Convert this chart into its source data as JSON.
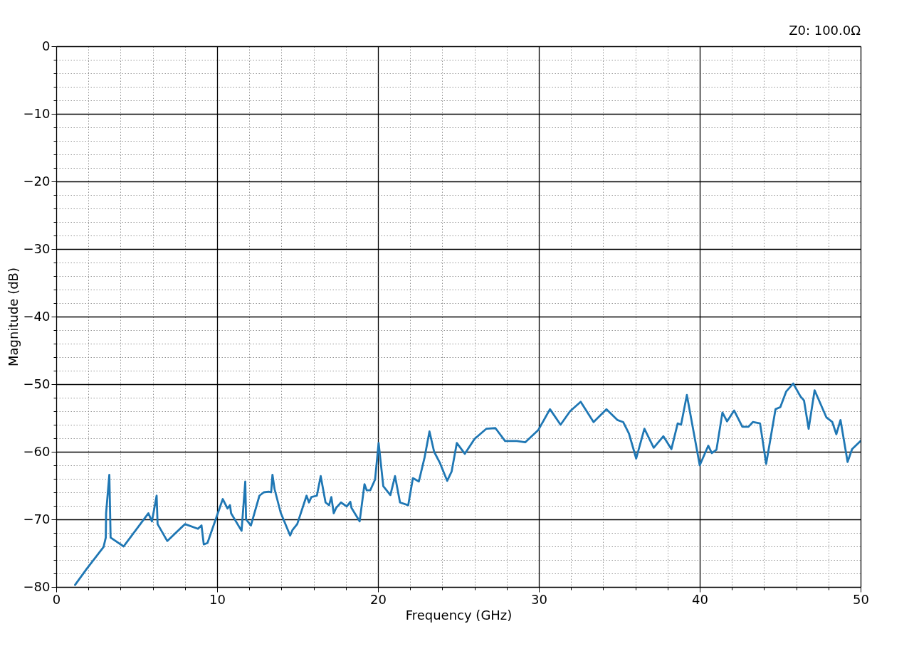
{
  "chart_data": {
    "type": "line",
    "xlabel": "Frequency (GHz)",
    "ylabel": "Magnitude (dB)",
    "annotations": [
      "Z0: 100.0Ω"
    ],
    "xlim": [
      0,
      50
    ],
    "ylim": [
      -80,
      0
    ],
    "xticks": [
      0,
      {
        "value": 2,
        "label": null
      },
      {
        "value": 4,
        "label": null
      },
      {
        "value": 6,
        "label": null
      },
      {
        "value": 8,
        "label": null
      },
      10,
      {
        "value": 12,
        "label": null
      },
      {
        "value": 14,
        "label": null
      },
      {
        "value": 16,
        "label": null
      },
      {
        "value": 18,
        "label": null
      },
      20,
      {
        "value": 22,
        "label": null
      },
      {
        "value": 24,
        "label": null
      },
      {
        "value": 26,
        "label": null
      },
      {
        "value": 28,
        "label": null
      },
      30,
      {
        "value": 32,
        "label": null
      },
      {
        "value": 34,
        "label": null
      },
      {
        "value": 36,
        "label": null
      },
      {
        "value": 38,
        "label": null
      },
      40,
      {
        "value": 42,
        "label": null
      },
      {
        "value": 44,
        "label": null
      },
      {
        "value": 46,
        "label": null
      },
      {
        "value": 48,
        "label": null
      },
      50
    ],
    "yticks": [
      {
        "value": -80,
        "label": "−80"
      },
      {
        "value": -78,
        "label": null
      },
      {
        "value": -76,
        "label": null
      },
      {
        "value": -74,
        "label": null
      },
      {
        "value": -72,
        "label": null
      },
      {
        "value": -70,
        "label": "−70"
      },
      {
        "value": -68,
        "label": null
      },
      {
        "value": -66,
        "label": null
      },
      {
        "value": -64,
        "label": null
      },
      {
        "value": -62,
        "label": null
      },
      {
        "value": -60,
        "label": "−60"
      },
      {
        "value": -58,
        "label": null
      },
      {
        "value": -56,
        "label": null
      },
      {
        "value": -54,
        "label": null
      },
      {
        "value": -52,
        "label": null
      },
      {
        "value": -50,
        "label": "−50"
      },
      {
        "value": -48,
        "label": null
      },
      {
        "value": -46,
        "label": null
      },
      {
        "value": -44,
        "label": null
      },
      {
        "value": -42,
        "label": null
      },
      {
        "value": -40,
        "label": "−40"
      },
      {
        "value": -38,
        "label": null
      },
      {
        "value": -36,
        "label": null
      },
      {
        "value": -34,
        "label": null
      },
      {
        "value": -32,
        "label": null
      },
      {
        "value": -30,
        "label": "−30"
      },
      {
        "value": -28,
        "label": null
      },
      {
        "value": -26,
        "label": null
      },
      {
        "value": -24,
        "label": null
      },
      {
        "value": -22,
        "label": null
      },
      {
        "value": -20,
        "label": "−20"
      },
      {
        "value": -18,
        "label": null
      },
      {
        "value": -16,
        "label": null
      },
      {
        "value": -14,
        "label": null
      },
      {
        "value": -12,
        "label": null
      },
      {
        "value": -10,
        "label": "−10"
      },
      {
        "value": -8,
        "label": null
      },
      {
        "value": -6,
        "label": null
      },
      {
        "value": -4,
        "label": null
      },
      {
        "value": -2,
        "label": null
      },
      0
    ],
    "grid": true,
    "marker": "none",
    "line_style": "solid",
    "series": [
      {
        "color": "#1f77b4",
        "x": [
          1.17,
          1.9,
          2.94,
          3.08,
          3.1,
          3.3,
          3.38,
          4.19,
          5.73,
          5.95,
          6.24,
          6.3,
          6.9,
          8.0,
          8.81,
          9.03,
          9.17,
          9.4,
          10.35,
          10.65,
          10.8,
          10.87,
          11.52,
          11.75,
          11.8,
          12.1,
          12.63,
          12.9,
          13.2,
          13.36,
          13.44,
          13.57,
          13.95,
          14.54,
          14.68,
          14.98,
          15.56,
          15.71,
          15.86,
          16.2,
          16.44,
          16.74,
          16.96,
          17.1,
          17.25,
          17.4,
          17.7,
          18.06,
          18.28,
          18.35,
          18.86,
          19.16,
          19.3,
          19.52,
          19.82,
          20.04,
          20.33,
          20.77,
          21.06,
          21.37,
          21.88,
          22.17,
          22.54,
          22.9,
          23.2,
          23.49,
          23.86,
          24.3,
          24.58,
          24.9,
          25.4,
          26.0,
          26.73,
          27.3,
          27.9,
          28.63,
          29.15,
          29.96,
          30.69,
          31.35,
          31.94,
          32.6,
          33.4,
          34.2,
          34.88,
          35.24,
          35.6,
          36.05,
          36.56,
          37.14,
          37.74,
          38.24,
          38.63,
          38.84,
          39.2,
          40.0,
          40.53,
          40.75,
          41.04,
          41.41,
          41.7,
          42.14,
          42.65,
          43.03,
          43.3,
          43.75,
          44.13,
          44.71,
          45.01,
          45.37,
          45.81,
          46.26,
          46.48,
          46.77,
          47.14,
          47.87,
          48.24,
          48.49,
          48.75,
          49.19,
          49.47,
          50.0
        ],
        "values": [
          -79.7,
          -77.3,
          -74.1,
          -72.7,
          -69.1,
          -63.4,
          -72.7,
          -74.0,
          -69.1,
          -70.3,
          -66.5,
          -70.7,
          -73.2,
          -70.7,
          -71.4,
          -70.9,
          -73.7,
          -73.5,
          -67.0,
          -68.4,
          -67.9,
          -69.1,
          -71.7,
          -64.4,
          -70.0,
          -70.9,
          -66.5,
          -66.0,
          -65.9,
          -66.0,
          -63.4,
          -65.5,
          -69.0,
          -72.4,
          -71.6,
          -70.7,
          -66.5,
          -67.5,
          -66.7,
          -66.5,
          -63.6,
          -67.5,
          -67.9,
          -66.7,
          -69.1,
          -68.3,
          -67.5,
          -68.1,
          -67.4,
          -68.3,
          -70.3,
          -64.8,
          -65.7,
          -65.7,
          -64.1,
          -58.7,
          -65.1,
          -66.4,
          -63.6,
          -67.5,
          -67.9,
          -63.9,
          -64.4,
          -60.8,
          -57.0,
          -60.0,
          -61.7,
          -64.3,
          -62.9,
          -58.7,
          -60.3,
          -58.1,
          -56.6,
          -56.5,
          -58.4,
          -58.4,
          -58.6,
          -56.8,
          -53.7,
          -56.0,
          -54.0,
          -52.6,
          -55.6,
          -53.7,
          -55.3,
          -55.6,
          -57.3,
          -61.0,
          -56.6,
          -59.4,
          -57.7,
          -59.6,
          -55.8,
          -56.0,
          -51.6,
          -62.0,
          -59.1,
          -60.2,
          -59.7,
          -54.2,
          -55.5,
          -53.9,
          -56.3,
          -56.3,
          -55.6,
          -55.8,
          -61.8,
          -53.7,
          -53.4,
          -51.1,
          -49.9,
          -51.8,
          -52.4,
          -56.6,
          -50.9,
          -54.9,
          -55.6,
          -57.4,
          -55.3,
          -61.5,
          -59.6,
          -58.4
        ]
      }
    ]
  }
}
